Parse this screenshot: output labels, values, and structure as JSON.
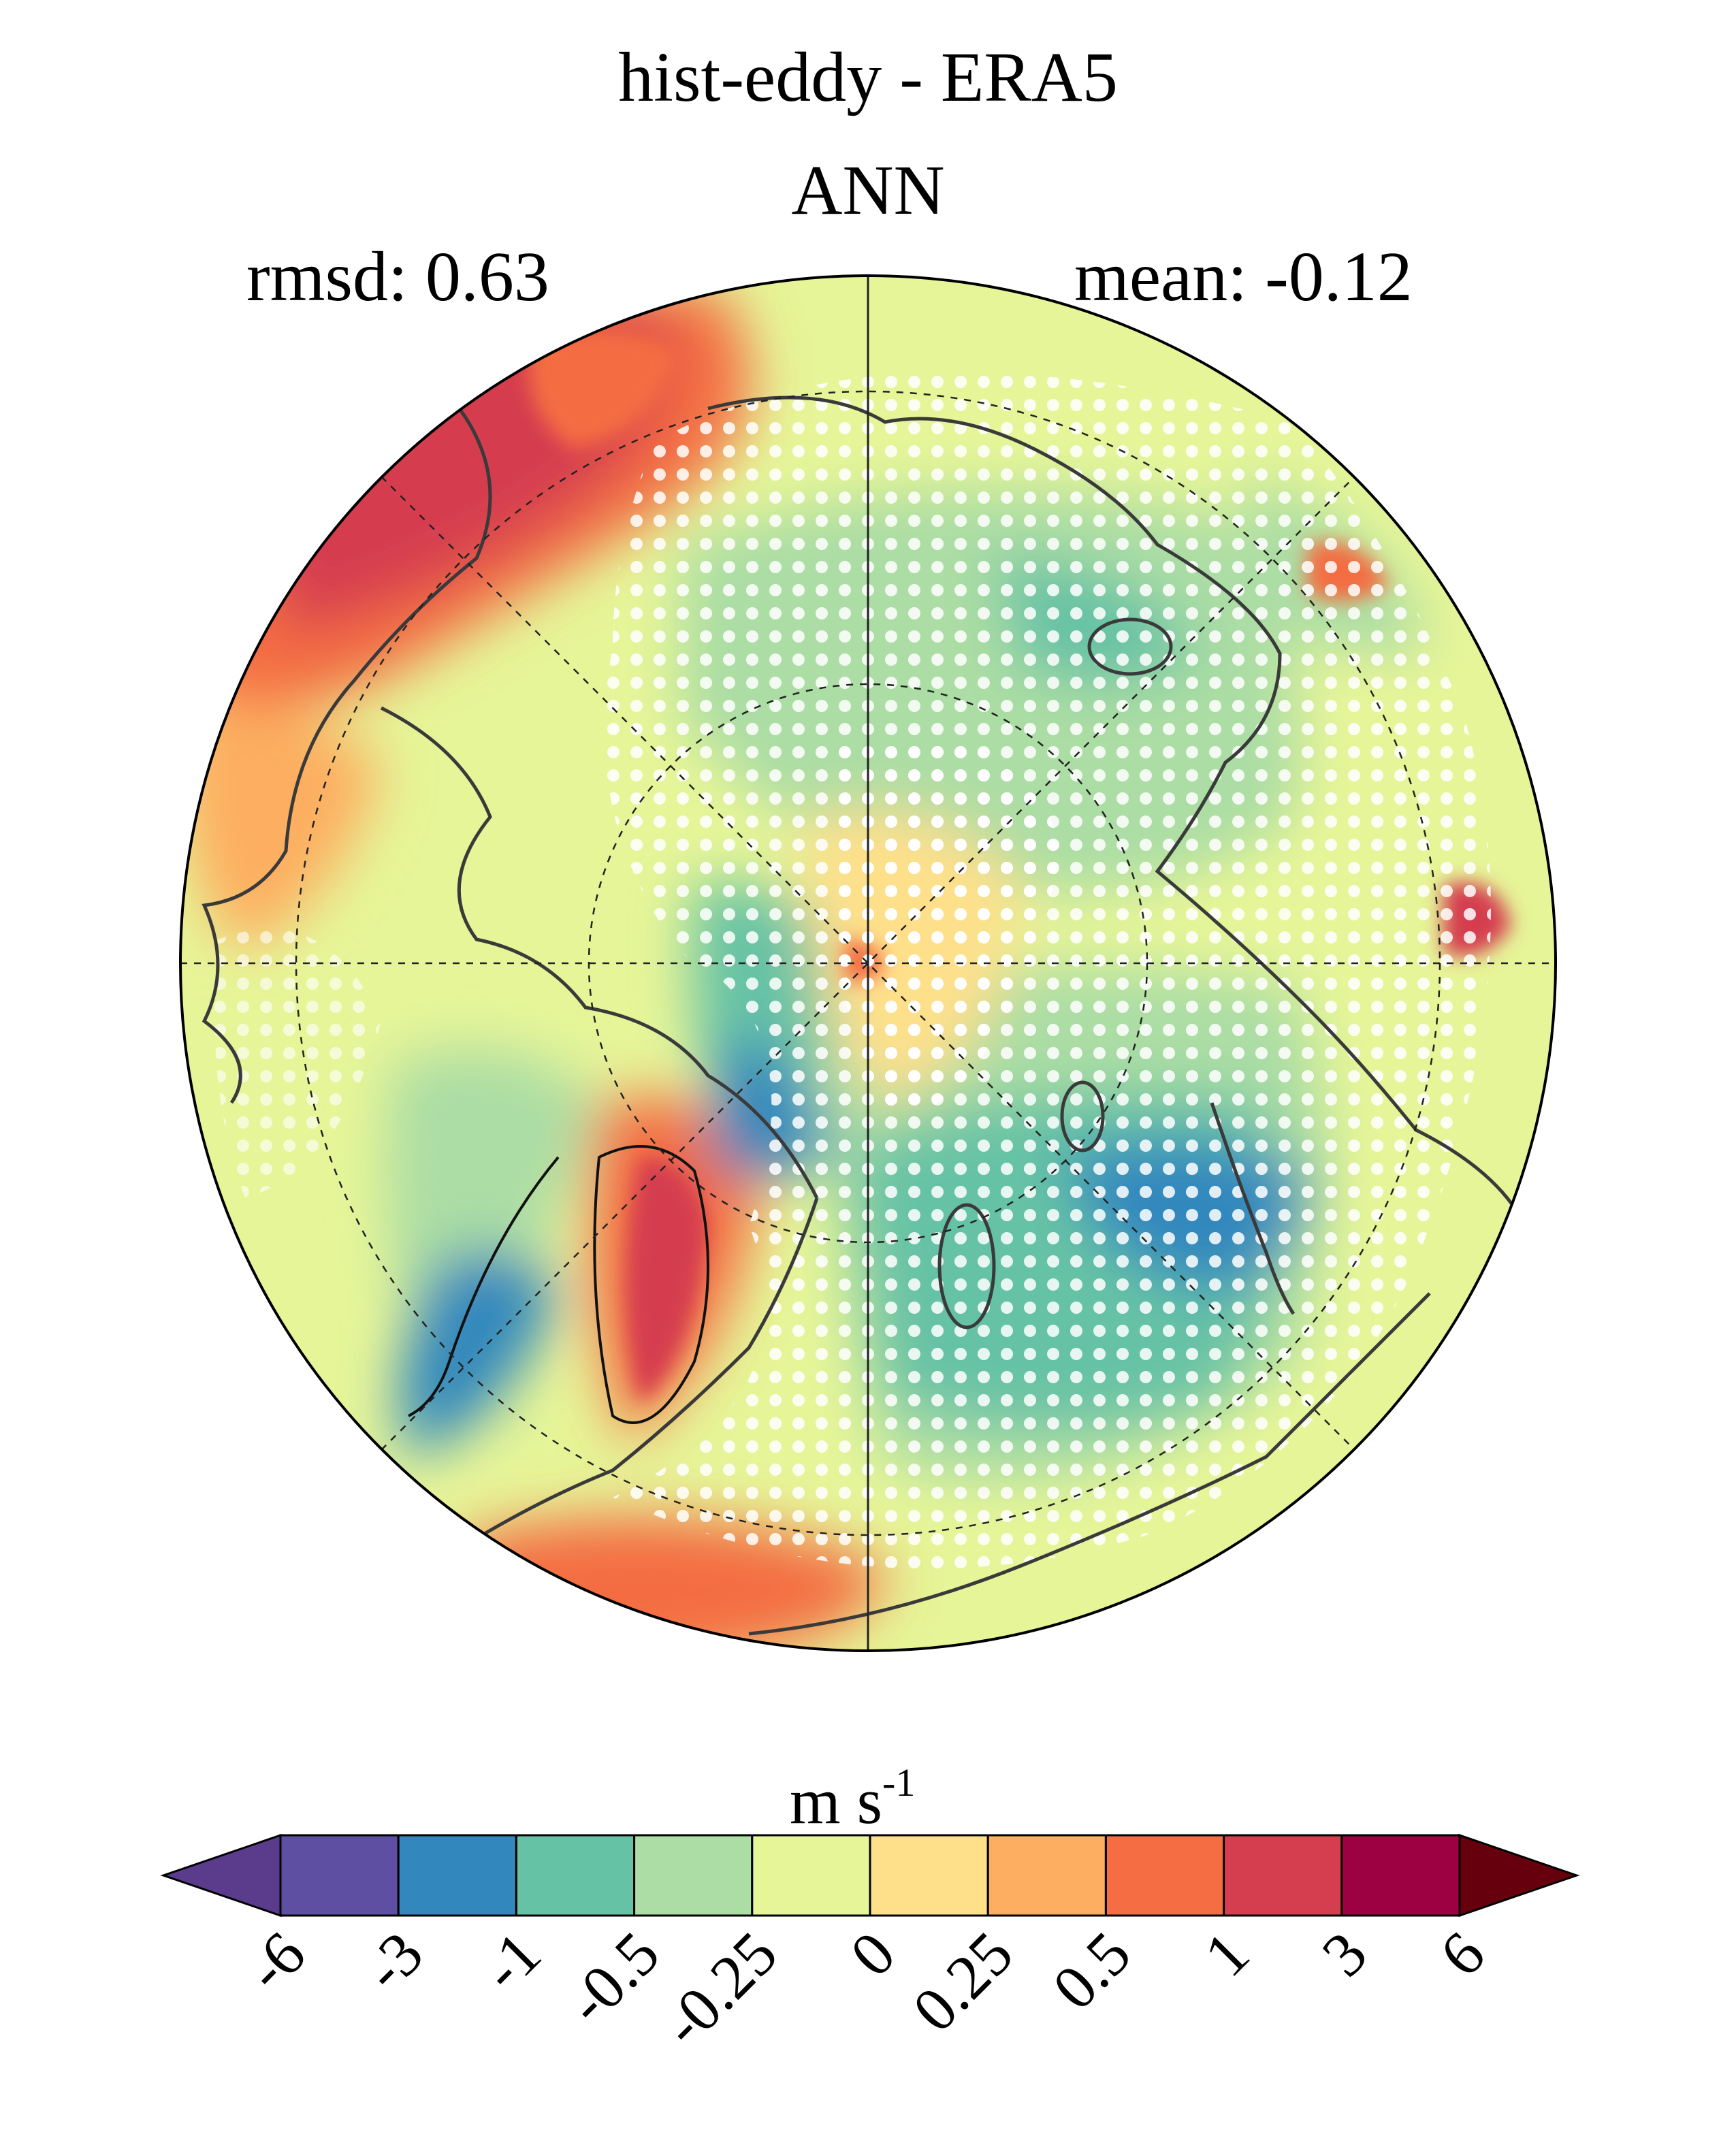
{
  "title": "hist-eddy - ERA5",
  "season": "ANN",
  "stats": {
    "rmsd": "rmsd: 0.63",
    "mean": "mean: -0.12"
  },
  "units": {
    "base": "m s",
    "exponent": "-1"
  },
  "colorbar": {
    "levels": [
      "-6",
      "-3",
      "-1",
      "-0.5",
      "-0.25",
      "0",
      "0.25",
      "0.5",
      "1",
      "3",
      "6"
    ],
    "colors": [
      "#5e4fa2",
      "#3288bd",
      "#66c2a5",
      "#abdda4",
      "#e6f598",
      "#fee08b",
      "#fdae61",
      "#f46d43",
      "#d53e4f",
      "#9e0142"
    ],
    "under_color": "#5a3b8c",
    "over_color": "#67000d"
  },
  "map": {
    "projection": "north-polar-stereographic",
    "stippling": "white dots",
    "gridlines": "dashed"
  }
}
